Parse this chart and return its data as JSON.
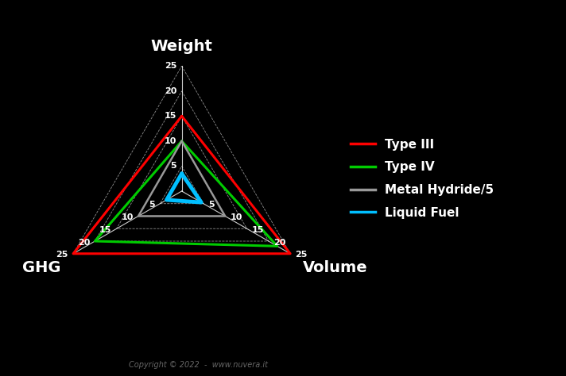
{
  "title_weight": "Weight",
  "title_volume": "Volume",
  "title_ghg": "GHG",
  "max_val": 25,
  "tick_vals": [
    5,
    10,
    15,
    20,
    25
  ],
  "series": [
    {
      "name": "Type III",
      "color": "#ff0000",
      "linewidth": 2.2,
      "values": [
        15,
        25,
        25
      ]
    },
    {
      "name": "Type IV",
      "color": "#00cc00",
      "linewidth": 2.2,
      "values": [
        10,
        22,
        20
      ]
    },
    {
      "name": "Metal Hydride/5",
      "color": "#999999",
      "linewidth": 1.8,
      "values": [
        10,
        10,
        10
      ]
    },
    {
      "name": "Liquid Fuel",
      "color": "#00bfff",
      "linewidth": 3.5,
      "values": [
        3.5,
        4.5,
        3.5
      ]
    }
  ],
  "background_color": "#000000",
  "text_color": "#ffffff",
  "grid_color": "#cccccc",
  "axis_color": "#ffffff",
  "axis_label_fontsize": 14,
  "tick_fontsize": 8,
  "legend_fontsize": 11,
  "copyright_text": "Copyright © 2022  -  www.nuvera.it"
}
